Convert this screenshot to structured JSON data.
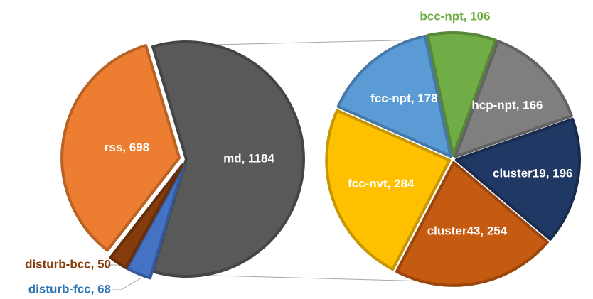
{
  "chart_data": {
    "type": "pie",
    "variant": "pie-of-pie",
    "main_pie": {
      "slices": [
        {
          "label": "md",
          "value": 1184,
          "color": "#595959",
          "text": "md, 1184",
          "label_color": "#ffffff"
        },
        {
          "label": "disturb-fcc",
          "value": 68,
          "color": "#4472c4",
          "text": "disturb-fcc, 68",
          "label_color": "#2e75b6"
        },
        {
          "label": "disturb-bcc",
          "value": 50,
          "color": "#843c0c",
          "text": "disturb-bcc, 50",
          "label_color": "#843c0c"
        },
        {
          "label": "rss",
          "value": 698,
          "color": "#ed7d31",
          "text": "rss, 698",
          "label_color": "#ffffff"
        }
      ]
    },
    "secondary_pie": {
      "source_label": "md",
      "slices": [
        {
          "label": "bcc-npt",
          "value": 106,
          "color": "#70ad47",
          "text": "bcc-npt, 106",
          "label_color": "#70ad47"
        },
        {
          "label": "hcp-npt",
          "value": 166,
          "color": "#7f7f7f",
          "text": "hcp-npt, 166",
          "label_color": "#ffffff"
        },
        {
          "label": "cluster19",
          "value": 196,
          "color": "#203864",
          "text": "cluster19, 196",
          "label_color": "#ffffff"
        },
        {
          "label": "cluster43",
          "value": 254,
          "color": "#c55a11",
          "text": "cluster43, 254",
          "label_color": "#ffffff"
        },
        {
          "label": "fcc-nvt",
          "value": 284,
          "color": "#ffc000",
          "text": "fcc-nvt, 284",
          "label_color": "#ffffff"
        },
        {
          "label": "fcc-npt",
          "value": 178,
          "color": "#5b9bd5",
          "text": "fcc-npt, 178",
          "label_color": "#ffffff"
        }
      ]
    },
    "legend": "none"
  }
}
